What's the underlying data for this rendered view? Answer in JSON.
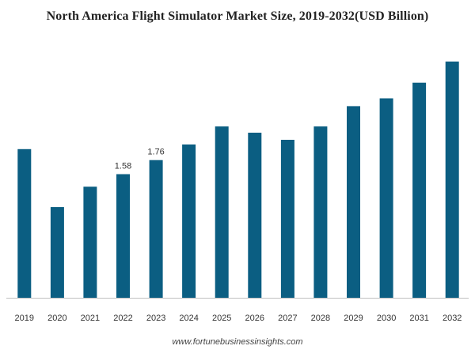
{
  "chart_data": {
    "type": "bar",
    "title": "North America Flight Simulator Market Size, 2019-2032(USD Billion)",
    "xlabel": "",
    "ylabel": "",
    "categories": [
      "2019",
      "2020",
      "2021",
      "2022",
      "2023",
      "2024",
      "2025",
      "2026",
      "2027",
      "2028",
      "2029",
      "2030",
      "2031",
      "2032"
    ],
    "values": [
      1.9,
      1.16,
      1.42,
      1.58,
      1.76,
      1.96,
      2.19,
      2.11,
      2.02,
      2.19,
      2.45,
      2.55,
      2.75,
      3.02
    ],
    "data_labels": [
      "",
      "",
      "",
      "1.58",
      "1.76",
      "",
      "",
      "",
      "",
      "",
      "",
      "",
      "",
      ""
    ],
    "ylim": [
      0,
      3.1
    ],
    "grid": false,
    "legend": "none",
    "bar_color": "#0b5e82",
    "axis_color": "#bfbfbf"
  },
  "footer": {
    "source": "www.fortunebusinessinsights.com"
  }
}
